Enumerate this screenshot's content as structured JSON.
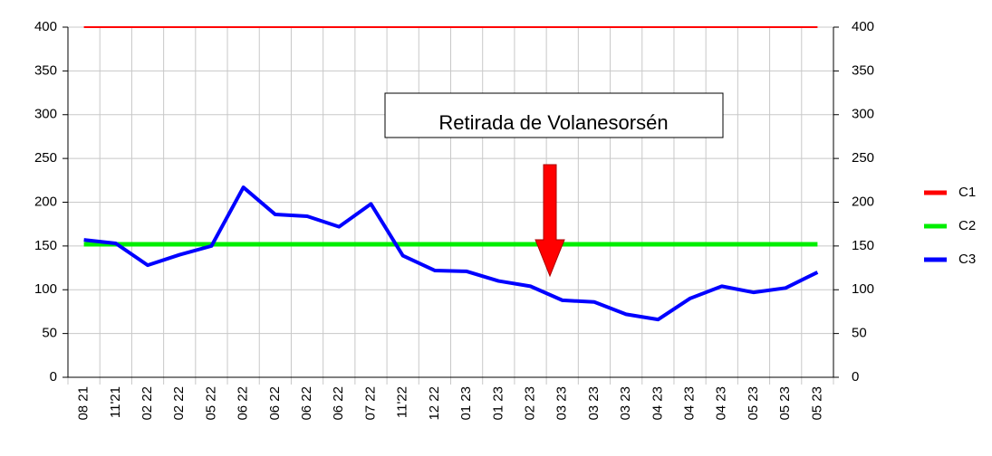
{
  "chart_data": {
    "type": "line",
    "annotation": "Retirada de Volanesorsén",
    "categories": [
      "08 21",
      "11'21",
      "02 22",
      "02 22",
      "05 22",
      "06 22",
      "06 22",
      "06 22",
      "06 22",
      "07 22",
      "11'22",
      "12 22",
      "01 23",
      "01 23",
      "02 23",
      "03 23",
      "03 23",
      "03 23",
      "04 23",
      "04 23",
      "04 23",
      "05 23",
      "05 23",
      "05 23"
    ],
    "series": [
      {
        "name": "C1",
        "color": "#ff0000",
        "values": [
          400,
          400,
          400,
          400,
          400,
          400,
          400,
          400,
          400,
          400,
          400,
          400,
          400,
          400,
          400,
          400,
          400,
          400,
          400,
          400,
          400,
          400,
          400,
          400
        ]
      },
      {
        "name": "C2",
        "color": "#00ee00",
        "values": [
          152,
          152,
          152,
          152,
          152,
          152,
          152,
          152,
          152,
          152,
          152,
          152,
          152,
          152,
          152,
          152,
          152,
          152,
          152,
          152,
          152,
          152,
          152,
          152
        ]
      },
      {
        "name": "C3",
        "color": "#0000ff",
        "values": [
          157,
          153,
          128,
          140,
          150,
          217,
          186,
          184,
          172,
          198,
          139,
          122,
          121,
          110,
          104,
          88,
          86,
          72,
          66,
          90,
          104,
          97,
          102,
          120
        ]
      }
    ],
    "ylim": [
      0,
      400
    ],
    "yticks": [
      0,
      50,
      100,
      150,
      200,
      250,
      300,
      350,
      400
    ],
    "y2lim": [
      0,
      400
    ],
    "y2ticks": [
      0,
      50,
      100,
      150,
      200,
      250,
      300,
      350,
      400
    ],
    "grid": true
  }
}
